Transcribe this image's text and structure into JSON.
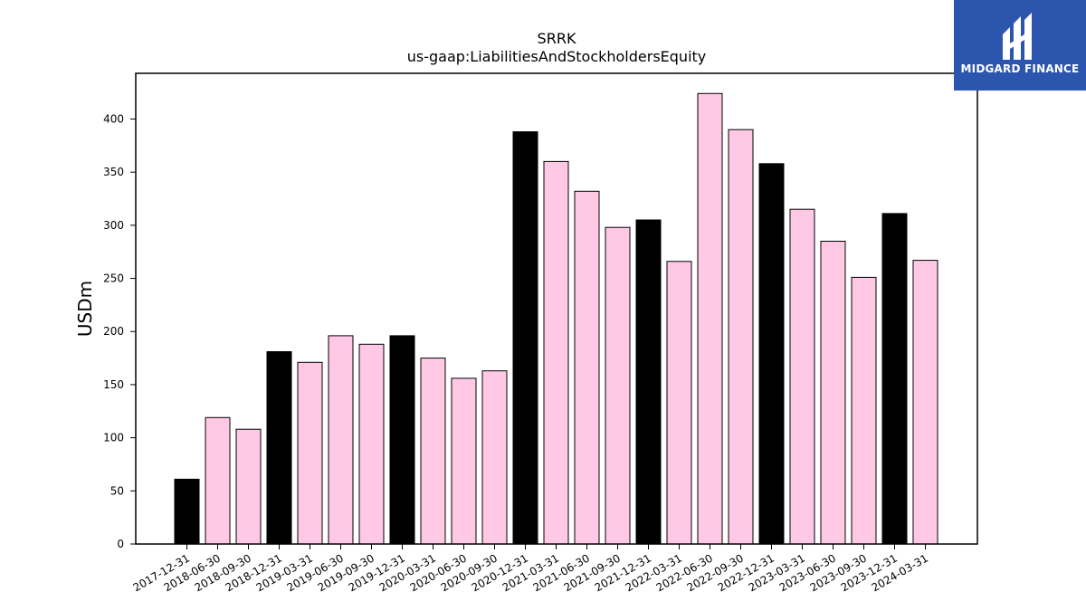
{
  "chart_data": {
    "type": "bar",
    "title": "SRRK",
    "subtitle": "us-gaap:LiabilitiesAndStockholdersEquity",
    "xlabel": "",
    "ylabel": "USDm",
    "ylim": [
      0,
      443
    ],
    "yticks": [
      0,
      50,
      100,
      150,
      200,
      250,
      300,
      350,
      400
    ],
    "grid": false,
    "categories": [
      "2017-12-31",
      "2018-06-30",
      "2018-09-30",
      "2018-12-31",
      "2019-03-31",
      "2019-06-30",
      "2019-09-30",
      "2019-12-31",
      "2020-03-31",
      "2020-06-30",
      "2020-09-30",
      "2020-12-31",
      "2021-03-31",
      "2021-06-30",
      "2021-09-30",
      "2021-12-31",
      "2022-03-31",
      "2022-06-30",
      "2022-09-30",
      "2022-12-31",
      "2023-03-31",
      "2023-06-30",
      "2023-09-30",
      "2023-12-31",
      "2024-03-31"
    ],
    "values": [
      61,
      119,
      108,
      181,
      171,
      196,
      188,
      196,
      175,
      156,
      163,
      388,
      360,
      332,
      298,
      305,
      266,
      424,
      390,
      358,
      315,
      285,
      251,
      311,
      267
    ],
    "colors": {
      "fiscal_year_end": "#000000",
      "quarter": "#ffc9e6",
      "edge": "#000000"
    }
  },
  "logo": {
    "text": "MIDGARD FINANCE",
    "background": "#2c56ad",
    "icon": "midgard-logo-icon"
  }
}
